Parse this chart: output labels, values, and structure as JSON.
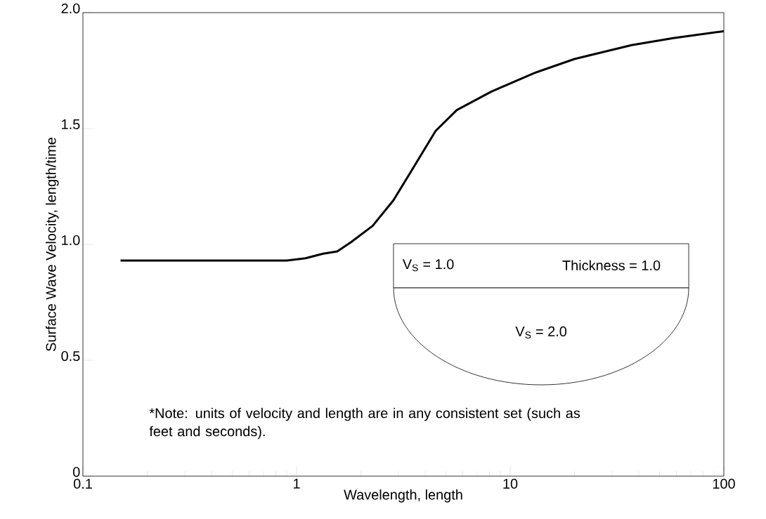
{
  "chart_data": {
    "type": "line",
    "xlabel": "Wavelength, length",
    "ylabel": "Surface Wave Velocity, length/time",
    "log": "x",
    "xlim": [
      0.1,
      100
    ],
    "xticks": [
      0.1,
      1,
      10,
      100
    ],
    "ylim": [
      0,
      2.0
    ],
    "yticks": [
      {
        "value": 0,
        "label": "0"
      },
      0.5,
      {
        "value": 1.0,
        "label": "1.0"
      },
      1.5,
      {
        "value": 2.0,
        "label": "2.0"
      }
    ],
    "x": [
      0.15,
      0.3,
      0.6,
      0.9,
      1.1,
      1.33,
      1.55,
      1.8,
      2.27,
      2.84,
      3.57,
      4.48,
      5.63,
      8.2,
      13,
      20,
      37,
      58,
      100
    ],
    "series": [
      {
        "color": "#000000",
        "values": [
          0.93,
          0.93,
          0.93,
          0.93,
          0.94,
          0.96,
          0.97,
          1.01,
          1.08,
          1.19,
          1.34,
          1.49,
          1.58,
          1.66,
          1.74,
          1.8,
          1.86,
          1.89,
          1.92
        ]
      }
    ],
    "annotations": [
      "V$_{S}$ = 1.0",
      "Thickness = 1.0",
      "V$_{S}$ = 2.0",
      "*Note: units of velocity and length are in any consistent set (such as feet and seconds)."
    ]
  }
}
